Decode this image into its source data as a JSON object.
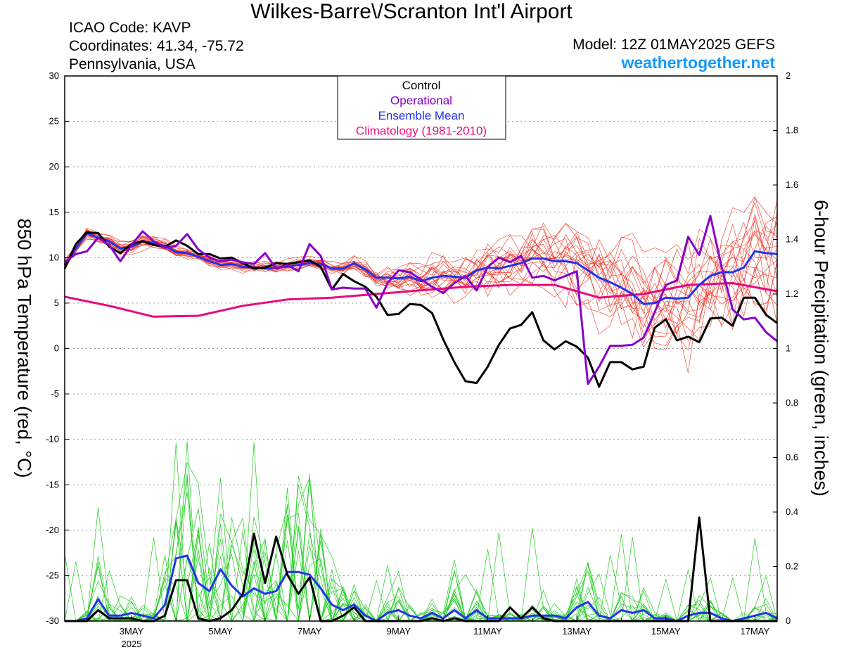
{
  "header": {
    "title": "Wilkes-Barre\\/Scranton Int'l Airport",
    "icao": "ICAO Code: KAVP",
    "coordinates": "Coordinates: 41.34, -75.72",
    "state": "Pennsylvania, USA",
    "model": "Model: 12Z 01MAY2025 GEFS",
    "site": "weathertogether.net"
  },
  "colors": {
    "control": "#000000",
    "operational": "#8800cc",
    "mean": "#2233ee",
    "climatology": "#e8097e",
    "ensemble_temp": "#ee3322",
    "ensemble_precip": "#22cc22",
    "site": "#1199ff"
  },
  "chart_data": {
    "type": "line",
    "title": "Wilkes-Barre\\/Scranton Int'l Airport",
    "ylabel_left": "850 hPa Temperature (red, °C)",
    "ylabel_right": "6-hour Precipitation (green, inches)",
    "xlim": [
      1.5,
      17.5
    ],
    "ylim_left": [
      -30,
      30
    ],
    "ylim_right": [
      0,
      2
    ],
    "left_ticks": [
      30,
      25,
      20,
      15,
      10,
      5,
      0,
      -5,
      -10,
      -15,
      -20,
      -25,
      -30
    ],
    "right_ticks": [
      2,
      1.8,
      1.6,
      1.4,
      1.2,
      1,
      0.8,
      0.6,
      0.4,
      0.2,
      0
    ],
    "x_ticks": [
      {
        "day": 3,
        "label": "3MAY",
        "sub": "2025"
      },
      {
        "day": 5,
        "label": "5MAY",
        "sub": ""
      },
      {
        "day": 7,
        "label": "7MAY",
        "sub": ""
      },
      {
        "day": 9,
        "label": "9MAY",
        "sub": ""
      },
      {
        "day": 11,
        "label": "11MAY",
        "sub": ""
      },
      {
        "day": 13,
        "label": "13MAY",
        "sub": ""
      },
      {
        "day": 15,
        "label": "15MAY",
        "sub": ""
      },
      {
        "day": 17,
        "label": "17MAY",
        "sub": ""
      }
    ],
    "legend": {
      "placement": "top-center",
      "entries": [
        {
          "name": "Control",
          "key": "control"
        },
        {
          "name": "Operational",
          "key": "operational"
        },
        {
          "name": "Ensemble Mean",
          "key": "mean"
        },
        {
          "name": "Climatology (1981-2010)",
          "key": "climatology"
        }
      ]
    },
    "grid": "dotted horizontal",
    "temperature": {
      "climatology": [
        [
          1.5,
          5.7
        ],
        [
          2.5,
          4.7
        ],
        [
          3.5,
          3.5
        ],
        [
          4.5,
          3.6
        ],
        [
          5.5,
          4.7
        ],
        [
          6.5,
          5.4
        ],
        [
          7.5,
          5.6
        ],
        [
          8.5,
          6.0
        ],
        [
          9.5,
          6.4
        ],
        [
          10.5,
          6.8
        ],
        [
          11.5,
          7.0
        ],
        [
          12.5,
          7.0
        ],
        [
          13.5,
          5.6
        ],
        [
          14.5,
          6.0
        ],
        [
          15.5,
          7.0
        ],
        [
          16.5,
          7.2
        ],
        [
          17.5,
          6.3
        ]
      ],
      "control": [
        [
          1.5,
          8.8
        ],
        [
          1.75,
          11.5
        ],
        [
          2.0,
          12.8
        ],
        [
          2.25,
          12.7
        ],
        [
          2.5,
          11.2
        ],
        [
          2.75,
          10.5
        ],
        [
          3.0,
          11.5
        ],
        [
          3.25,
          11.8
        ],
        [
          3.5,
          11.4
        ],
        [
          3.75,
          11.2
        ],
        [
          4.0,
          11.9
        ],
        [
          4.25,
          11.3
        ],
        [
          4.5,
          10.4
        ],
        [
          4.75,
          10.4
        ],
        [
          5.0,
          9.9
        ],
        [
          5.25,
          10.0
        ],
        [
          5.5,
          9.4
        ],
        [
          5.75,
          8.8
        ],
        [
          6.0,
          8.9
        ],
        [
          6.25,
          9.4
        ],
        [
          6.5,
          9.3
        ],
        [
          6.75,
          9.5
        ],
        [
          7.0,
          9.7
        ],
        [
          7.25,
          9.0
        ],
        [
          7.5,
          6.5
        ],
        [
          7.75,
          8.2
        ],
        [
          8.0,
          7.4
        ],
        [
          8.25,
          6.8
        ],
        [
          8.5,
          5.7
        ],
        [
          8.75,
          3.7
        ],
        [
          9.0,
          3.8
        ],
        [
          9.25,
          4.9
        ],
        [
          9.5,
          4.8
        ],
        [
          9.75,
          3.9
        ],
        [
          10.0,
          1.0
        ],
        [
          10.25,
          -1.5
        ],
        [
          10.5,
          -3.6
        ],
        [
          10.75,
          -3.8
        ],
        [
          11.0,
          -2.0
        ],
        [
          11.25,
          0.4
        ],
        [
          11.5,
          2.2
        ],
        [
          11.75,
          2.6
        ],
        [
          12.0,
          4.0
        ],
        [
          12.25,
          0.9
        ],
        [
          12.5,
          -0.1
        ],
        [
          12.75,
          0.8
        ],
        [
          13.0,
          0.2
        ],
        [
          13.25,
          -1.0
        ],
        [
          13.5,
          -4.2
        ],
        [
          13.75,
          -1.5
        ],
        [
          14.0,
          -1.5
        ],
        [
          14.25,
          -2.3
        ],
        [
          14.5,
          -2.0
        ],
        [
          14.75,
          2.3
        ],
        [
          15.0,
          3.2
        ],
        [
          15.25,
          0.9
        ],
        [
          15.5,
          1.3
        ],
        [
          15.75,
          0.7
        ],
        [
          16.0,
          3.3
        ],
        [
          16.25,
          3.4
        ],
        [
          16.5,
          2.5
        ],
        [
          16.75,
          5.6
        ],
        [
          17.0,
          5.6
        ],
        [
          17.25,
          3.7
        ],
        [
          17.5,
          2.8
        ]
      ],
      "operational": [
        [
          1.5,
          9.5
        ],
        [
          1.75,
          10.4
        ],
        [
          2.0,
          10.7
        ],
        [
          2.25,
          12.2
        ],
        [
          2.5,
          11.4
        ],
        [
          2.75,
          9.6
        ],
        [
          3.0,
          11.4
        ],
        [
          3.25,
          12.9
        ],
        [
          3.5,
          11.8
        ],
        [
          3.75,
          11.1
        ],
        [
          4.0,
          11.3
        ],
        [
          4.25,
          12.6
        ],
        [
          4.5,
          10.9
        ],
        [
          4.75,
          10.0
        ],
        [
          5.0,
          9.6
        ],
        [
          5.25,
          9.8
        ],
        [
          5.5,
          9.5
        ],
        [
          5.75,
          9.3
        ],
        [
          6.0,
          10.5
        ],
        [
          6.25,
          8.8
        ],
        [
          6.5,
          9.2
        ],
        [
          6.75,
          8.5
        ],
        [
          7.0,
          11.5
        ],
        [
          7.25,
          10.2
        ],
        [
          7.5,
          6.5
        ],
        [
          7.75,
          6.7
        ],
        [
          8.0,
          6.6
        ],
        [
          8.25,
          6.6
        ],
        [
          8.5,
          4.5
        ],
        [
          8.75,
          7.2
        ],
        [
          9.0,
          8.6
        ],
        [
          9.25,
          8.4
        ],
        [
          9.5,
          7.6
        ],
        [
          9.75,
          6.8
        ],
        [
          10.0,
          6.1
        ],
        [
          10.25,
          7.2
        ],
        [
          10.5,
          8.0
        ],
        [
          10.75,
          6.4
        ],
        [
          11.0,
          9.0
        ],
        [
          11.25,
          10.0
        ],
        [
          11.5,
          9.5
        ],
        [
          11.75,
          10.2
        ],
        [
          12.0,
          7.8
        ],
        [
          12.25,
          8.0
        ],
        [
          12.5,
          7.5
        ],
        [
          12.75,
          8.0
        ],
        [
          13.0,
          8.5
        ],
        [
          13.25,
          -3.9
        ],
        [
          13.5,
          -2.0
        ],
        [
          13.75,
          0.3
        ],
        [
          14.0,
          0.3
        ],
        [
          14.25,
          0.4
        ],
        [
          14.5,
          1.2
        ],
        [
          14.75,
          4.0
        ],
        [
          15.0,
          7.0
        ],
        [
          15.25,
          7.5
        ],
        [
          15.5,
          12.3
        ],
        [
          15.75,
          10.3
        ],
        [
          16.0,
          14.6
        ],
        [
          16.25,
          9.0
        ],
        [
          16.5,
          4.3
        ],
        [
          16.75,
          3.2
        ],
        [
          17.0,
          3.4
        ],
        [
          17.25,
          1.8
        ],
        [
          17.5,
          0.8
        ]
      ],
      "mean": [
        [
          1.5,
          9.2
        ],
        [
          1.75,
          11.0
        ],
        [
          2.0,
          12.7
        ],
        [
          2.25,
          12.2
        ],
        [
          2.5,
          11.8
        ],
        [
          2.75,
          11.0
        ],
        [
          3.0,
          11.2
        ],
        [
          3.25,
          11.8
        ],
        [
          3.5,
          11.6
        ],
        [
          3.75,
          11.3
        ],
        [
          4.0,
          10.6
        ],
        [
          4.25,
          10.5
        ],
        [
          4.5,
          10.1
        ],
        [
          4.75,
          9.6
        ],
        [
          5.0,
          9.2
        ],
        [
          5.25,
          9.3
        ],
        [
          5.5,
          9.0
        ],
        [
          5.75,
          8.9
        ],
        [
          6.0,
          8.8
        ],
        [
          6.25,
          8.9
        ],
        [
          6.5,
          9.0
        ],
        [
          6.75,
          9.2
        ],
        [
          7.0,
          9.4
        ],
        [
          7.25,
          9.3
        ],
        [
          7.5,
          8.8
        ],
        [
          7.75,
          8.8
        ],
        [
          8.0,
          9.4
        ],
        [
          8.25,
          8.7
        ],
        [
          8.5,
          7.8
        ],
        [
          8.75,
          7.8
        ],
        [
          9.0,
          7.7
        ],
        [
          9.25,
          7.9
        ],
        [
          9.5,
          7.4
        ],
        [
          9.75,
          7.8
        ],
        [
          10.0,
          8.0
        ],
        [
          10.25,
          7.9
        ],
        [
          10.5,
          7.8
        ],
        [
          10.75,
          8.6
        ],
        [
          11.0,
          8.9
        ],
        [
          11.25,
          8.8
        ],
        [
          11.5,
          9.1
        ],
        [
          11.75,
          9.4
        ],
        [
          12.0,
          9.9
        ],
        [
          12.25,
          9.9
        ],
        [
          12.5,
          9.6
        ],
        [
          12.75,
          9.6
        ],
        [
          13.0,
          9.4
        ],
        [
          13.25,
          8.6
        ],
        [
          13.5,
          7.8
        ],
        [
          13.75,
          7.3
        ],
        [
          14.0,
          6.7
        ],
        [
          14.25,
          6.0
        ],
        [
          14.5,
          4.9
        ],
        [
          14.75,
          5.0
        ],
        [
          15.0,
          5.6
        ],
        [
          15.25,
          5.5
        ],
        [
          15.5,
          5.6
        ],
        [
          15.75,
          7.0
        ],
        [
          16.0,
          8.0
        ],
        [
          16.25,
          8.4
        ],
        [
          16.5,
          8.4
        ],
        [
          16.75,
          8.9
        ],
        [
          17.0,
          10.7
        ],
        [
          17.25,
          10.5
        ],
        [
          17.5,
          10.4
        ]
      ]
    },
    "precipitation": {
      "control": [
        [
          1.5,
          0
        ],
        [
          1.75,
          0
        ],
        [
          2.0,
          0
        ],
        [
          2.25,
          0.04
        ],
        [
          2.5,
          0.01
        ],
        [
          2.75,
          0.01
        ],
        [
          3.0,
          0.01
        ],
        [
          3.25,
          0
        ],
        [
          3.5,
          0
        ],
        [
          3.75,
          0.02
        ],
        [
          4.0,
          0.15
        ],
        [
          4.25,
          0.15
        ],
        [
          4.5,
          0.01
        ],
        [
          4.75,
          0
        ],
        [
          5.0,
          0.01
        ],
        [
          5.25,
          0.04
        ],
        [
          5.5,
          0.1
        ],
        [
          5.75,
          0.32
        ],
        [
          6.0,
          0.14
        ],
        [
          6.25,
          0.31
        ],
        [
          6.5,
          0.17
        ],
        [
          6.75,
          0.1
        ],
        [
          7.0,
          0.16
        ],
        [
          7.25,
          0
        ],
        [
          7.5,
          0
        ],
        [
          7.75,
          0.02
        ],
        [
          8.0,
          0.05
        ],
        [
          8.25,
          0
        ],
        [
          8.5,
          0
        ],
        [
          8.75,
          0
        ],
        [
          9.0,
          0
        ],
        [
          9.25,
          0
        ],
        [
          9.5,
          0
        ],
        [
          9.75,
          0.01
        ],
        [
          10.0,
          0
        ],
        [
          10.25,
          0.01
        ],
        [
          10.5,
          0
        ],
        [
          10.75,
          0
        ],
        [
          11.0,
          0
        ],
        [
          11.25,
          0
        ],
        [
          11.5,
          0.05
        ],
        [
          11.75,
          0.01
        ],
        [
          12.0,
          0.05
        ],
        [
          12.25,
          0.01
        ],
        [
          12.5,
          0
        ],
        [
          12.75,
          0
        ],
        [
          13.0,
          0
        ],
        [
          13.25,
          0
        ],
        [
          13.5,
          0
        ],
        [
          13.75,
          0
        ],
        [
          14.0,
          0
        ],
        [
          14.25,
          0
        ],
        [
          14.5,
          0
        ],
        [
          14.75,
          0
        ],
        [
          15.0,
          0
        ],
        [
          15.25,
          0
        ],
        [
          15.5,
          0
        ],
        [
          15.75,
          0.38
        ],
        [
          16.0,
          0
        ],
        [
          16.25,
          0
        ],
        [
          16.5,
          0
        ],
        [
          16.75,
          0
        ],
        [
          17.0,
          0
        ],
        [
          17.25,
          0
        ],
        [
          17.5,
          0
        ]
      ],
      "mean": [
        [
          1.5,
          0
        ],
        [
          1.75,
          0
        ],
        [
          2.0,
          0.01
        ],
        [
          2.25,
          0.08
        ],
        [
          2.5,
          0.02
        ],
        [
          2.75,
          0.02
        ],
        [
          3.0,
          0.03
        ],
        [
          3.25,
          0.02
        ],
        [
          3.5,
          0.01
        ],
        [
          3.75,
          0.06
        ],
        [
          4.0,
          0.23
        ],
        [
          4.25,
          0.24
        ],
        [
          4.5,
          0.14
        ],
        [
          4.75,
          0.11
        ],
        [
          5.0,
          0.19
        ],
        [
          5.25,
          0.13
        ],
        [
          5.5,
          0.09
        ],
        [
          5.75,
          0.12
        ],
        [
          6.0,
          0.1
        ],
        [
          6.25,
          0.11
        ],
        [
          6.5,
          0.18
        ],
        [
          6.75,
          0.18
        ],
        [
          7.0,
          0.17
        ],
        [
          7.25,
          0.12
        ],
        [
          7.5,
          0.06
        ],
        [
          7.75,
          0.04
        ],
        [
          8.0,
          0.06
        ],
        [
          8.25,
          0.02
        ],
        [
          8.5,
          0
        ],
        [
          8.75,
          0.03
        ],
        [
          9.0,
          0.04
        ],
        [
          9.25,
          0.02
        ],
        [
          9.5,
          0.01
        ],
        [
          9.75,
          0.03
        ],
        [
          10.0,
          0.01
        ],
        [
          10.25,
          0.04
        ],
        [
          10.5,
          0.01
        ],
        [
          10.75,
          0.04
        ],
        [
          11.0,
          0.01
        ],
        [
          11.25,
          0.01
        ],
        [
          11.5,
          0.01
        ],
        [
          11.75,
          0.01
        ],
        [
          12.0,
          0.02
        ],
        [
          12.25,
          0.02
        ],
        [
          12.5,
          0.02
        ],
        [
          12.75,
          0.01
        ],
        [
          13.0,
          0.05
        ],
        [
          13.25,
          0.07
        ],
        [
          13.5,
          0.02
        ],
        [
          13.75,
          0.01
        ],
        [
          14.0,
          0.04
        ],
        [
          14.25,
          0.03
        ],
        [
          14.5,
          0.04
        ],
        [
          14.75,
          0.01
        ],
        [
          15.0,
          0.01
        ],
        [
          15.25,
          0
        ],
        [
          15.5,
          0.02
        ],
        [
          15.75,
          0.03
        ],
        [
          16.0,
          0.03
        ],
        [
          16.25,
          0.01
        ],
        [
          16.5,
          0
        ],
        [
          16.75,
          0.01
        ],
        [
          17.0,
          0.02
        ],
        [
          17.25,
          0.03
        ],
        [
          17.5,
          0.01
        ]
      ]
    }
  }
}
